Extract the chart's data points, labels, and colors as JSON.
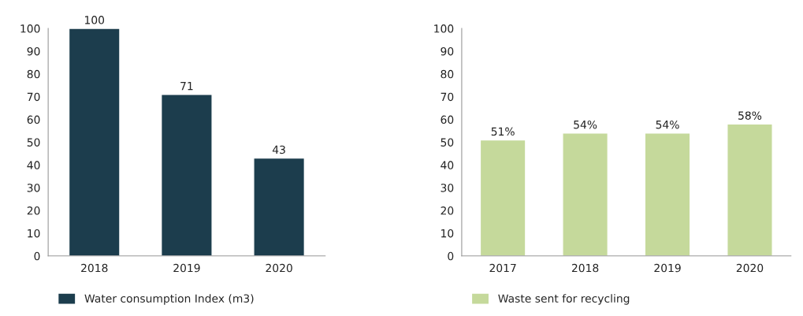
{
  "chart_data": [
    {
      "type": "bar",
      "categories": [
        "2018",
        "2019",
        "2020"
      ],
      "series": [
        {
          "name": "Water consumption Index (m3)",
          "color": "#1c3d4d",
          "values": [
            100,
            71,
            43
          ]
        }
      ],
      "ylim": [
        0,
        100
      ],
      "yticks": [
        0,
        10,
        20,
        30,
        40,
        50,
        60,
        70,
        80,
        90,
        100
      ],
      "data_labels": true,
      "grid": false,
      "legend": "bottom"
    },
    {
      "type": "bar",
      "categories": [
        "2017",
        "2018",
        "2019",
        "2020"
      ],
      "series": [
        {
          "name": "Waste sent for recycling",
          "color": "#c5d99b",
          "values": [
            51,
            54,
            54,
            58
          ],
          "value_labels": [
            "51%",
            "54%",
            "54%",
            "58%"
          ]
        }
      ],
      "ylim": [
        0,
        100
      ],
      "yticks": [
        0,
        10,
        20,
        30,
        40,
        50,
        60,
        70,
        80,
        90,
        100
      ],
      "grid": false,
      "legend": "bottom"
    }
  ]
}
